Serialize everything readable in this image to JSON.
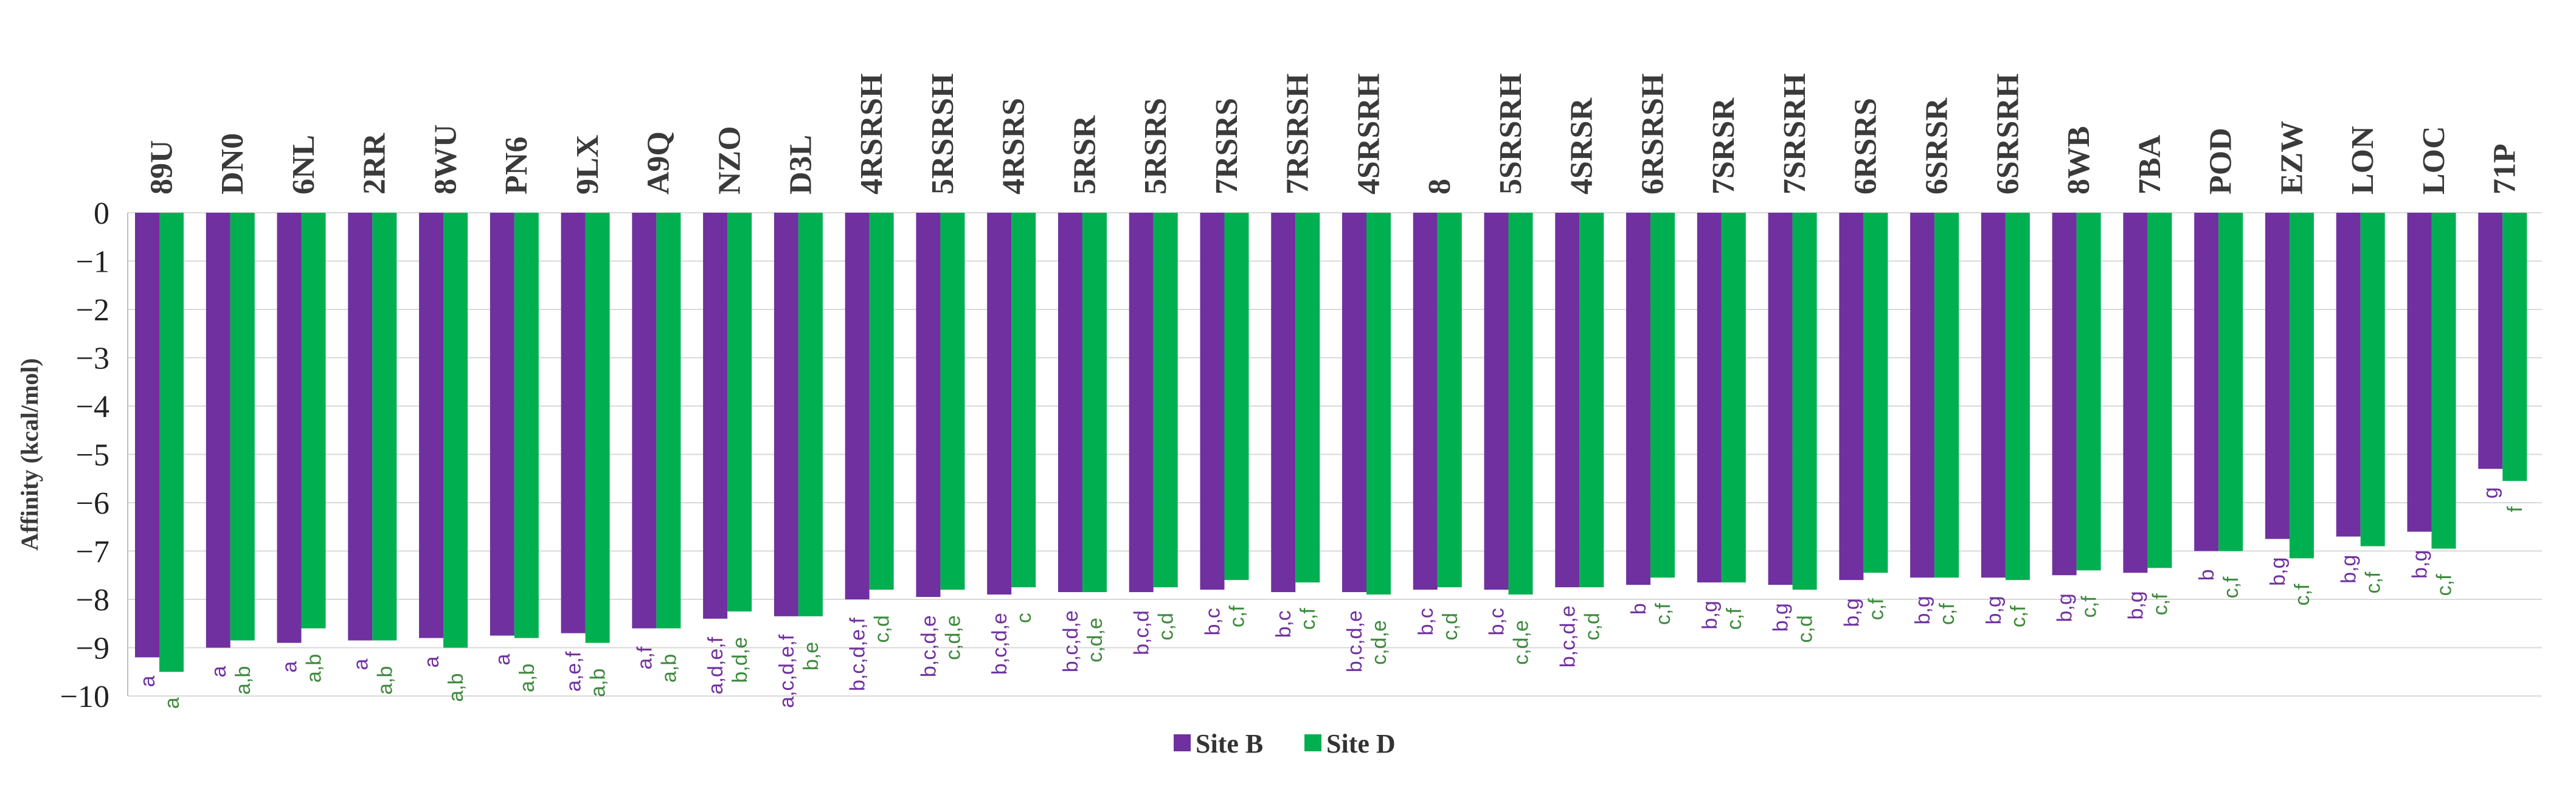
{
  "chart_data": {
    "type": "bar",
    "ylabel": "Affinity (kcal/mol)",
    "ylim": [
      -10,
      0
    ],
    "yticks": [
      "0",
      "−1",
      "−2",
      "−3",
      "−4",
      "−5",
      "−6",
      "−7",
      "−8",
      "−9",
      "−10"
    ],
    "grid": true,
    "legend_position": "bottom-center",
    "categories": [
      "89U",
      "DN0",
      "6NL",
      "2RR",
      "8WU",
      "PN6",
      "9LX",
      "A9Q",
      "NZO",
      "D3L",
      "4RSRSH",
      "5RSRSH",
      "4RSRS",
      "5RSR",
      "5RSRS",
      "7RSRS",
      "7RSRSH",
      "4SRSRH",
      "8",
      "5SRSRH",
      "4SRSR",
      "6RSRSH",
      "7SRSR",
      "7SRSRH",
      "6RSRS",
      "6SRSR",
      "6SRSRH",
      "8WB",
      "7BA",
      "POD",
      "EZW",
      "LON",
      "LOC",
      "71P"
    ],
    "series": [
      {
        "name": "Site B",
        "color": "#7030a0",
        "values": [
          -9.2,
          -9.0,
          -8.9,
          -8.85,
          -8.8,
          -8.75,
          -8.7,
          -8.6,
          -8.4,
          -8.35,
          -8.0,
          -7.95,
          -7.9,
          -7.85,
          -7.85,
          -7.8,
          -7.85,
          -7.85,
          -7.8,
          -7.8,
          -7.75,
          -7.7,
          -7.65,
          -7.7,
          -7.6,
          -7.55,
          -7.55,
          -7.5,
          -7.45,
          -7.0,
          -6.75,
          -6.7,
          -6.6,
          -5.3
        ],
        "annotations": [
          "a",
          "a",
          "a",
          "a",
          "a",
          "a",
          "a,e,f",
          "a,f",
          "a,d,e,f",
          "a,c,d,e,f",
          "b,c,d,e,f",
          "b,c,d,e",
          "b,c,d,e",
          "b,c,d,e",
          "b,c,d",
          "b,c",
          "b,c",
          "b,c,d,e",
          "b,c",
          "b,c",
          "b,c,d,e",
          "b",
          "b,g",
          "b,g",
          "b,g",
          "b,g",
          "b,g",
          "b,g",
          "b,g",
          "b",
          "b,g",
          "b,g",
          "b,g",
          "g"
        ]
      },
      {
        "name": "Site D",
        "color": "#00b050",
        "values": [
          -9.5,
          -8.85,
          -8.6,
          -8.85,
          -9.0,
          -8.8,
          -8.9,
          -8.6,
          -8.25,
          -8.35,
          -7.8,
          -7.8,
          -7.75,
          -7.85,
          -7.75,
          -7.6,
          -7.65,
          -7.9,
          -7.75,
          -7.9,
          -7.75,
          -7.55,
          -7.65,
          -7.8,
          -7.45,
          -7.55,
          -7.6,
          -7.4,
          -7.35,
          -7.0,
          -7.15,
          -6.9,
          -6.95,
          -5.55
        ],
        "annotations": [
          "a",
          "a,b",
          "a,b",
          "a,b",
          "a,b",
          "a,b",
          "a,b",
          "a,b",
          "b,d,e",
          "b,e",
          "c,d",
          "c,d,e",
          "c",
          "c,d,e",
          "c,d",
          "c,f",
          "c,f",
          "c,d,e",
          "c,d",
          "c,d,e",
          "c,d",
          "c,f",
          "c,f",
          "c,d",
          "c,f",
          "c,f",
          "c,f",
          "c,f",
          "c,f",
          "c,f",
          "c,f",
          "c,f",
          "c,f",
          "f"
        ]
      }
    ]
  }
}
